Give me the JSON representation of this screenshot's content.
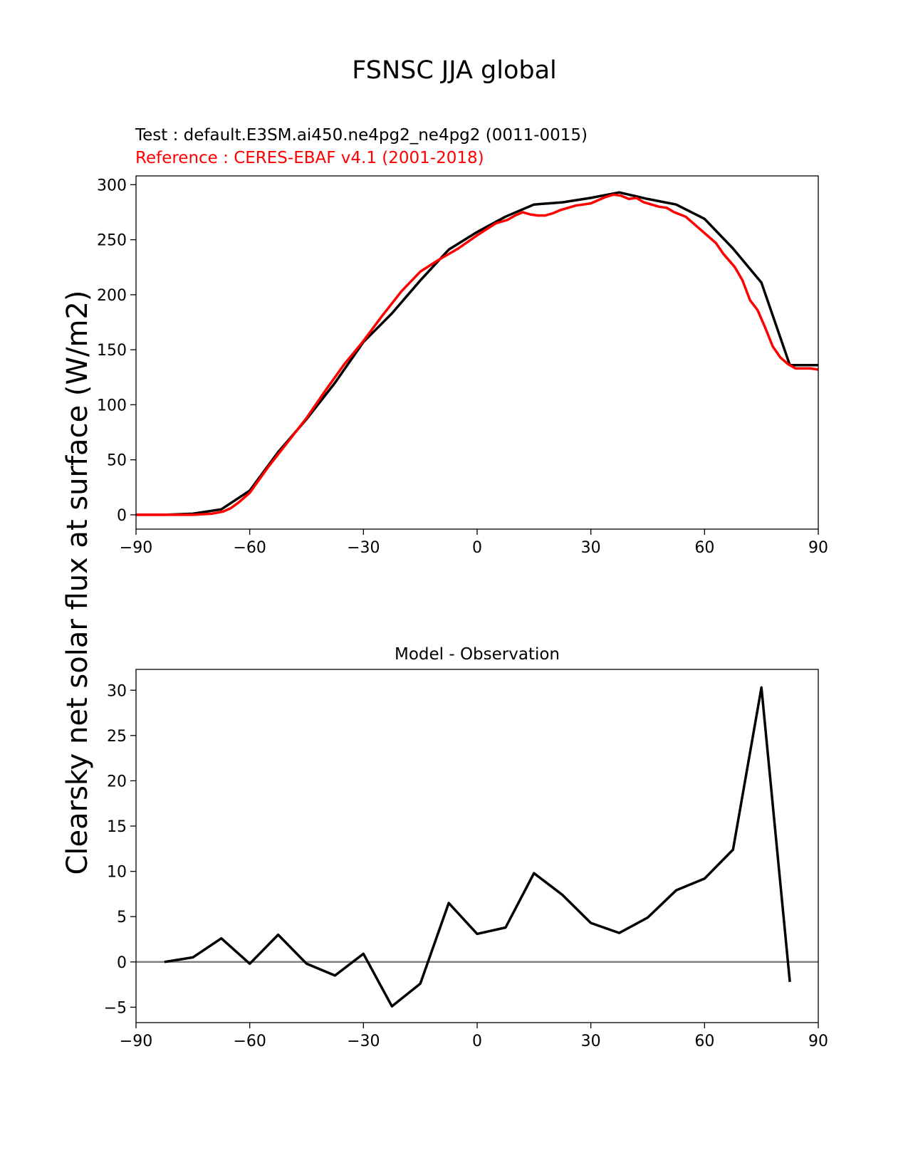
{
  "figure": {
    "title": "FSNSC JJA global",
    "ylabel": "Clearsky net solar flux at surface (W/m2)",
    "colors": {
      "test": "#000000",
      "reference": "#ff0000",
      "zero_line": "#808080"
    }
  },
  "chart_data": [
    {
      "type": "line",
      "test_label": "Test : default.E3SM.ai450.ne4pg2_ne4pg2 (0011-0015)",
      "reference_label": "Reference : CERES-EBAF v4.1 (2001-2018)",
      "xlim": [
        -90,
        90
      ],
      "ylim": [
        -13,
        308
      ],
      "xticks": [
        -90,
        -60,
        -30,
        0,
        30,
        60,
        90
      ],
      "xtick_labels": [
        "−90",
        "−60",
        "−30",
        "0",
        "30",
        "60",
        "90"
      ],
      "yticks": [
        0,
        50,
        100,
        150,
        200,
        250,
        300
      ],
      "ytick_labels": [
        "0",
        "50",
        "100",
        "150",
        "200",
        "250",
        "300"
      ],
      "series": [
        {
          "role": "test",
          "x": [
            -90,
            -82.5,
            -75,
            -67.5,
            -60,
            -52.5,
            -45,
            -37.5,
            -30,
            -22.5,
            -15,
            -7.5,
            0,
            7.5,
            15,
            22.5,
            30,
            37.5,
            45,
            52.5,
            60,
            67.5,
            75,
            82.5,
            90
          ],
          "y": [
            0,
            0,
            1,
            5,
            22,
            57,
            87,
            120,
            157,
            183,
            213,
            241,
            257,
            271,
            282,
            284,
            288,
            293,
            287,
            282,
            269,
            242,
            211,
            136,
            136
          ]
        },
        {
          "role": "reference",
          "x": [
            -90,
            -80,
            -75,
            -70,
            -67,
            -65,
            -63,
            -60,
            -55,
            -50,
            -45,
            -40,
            -35,
            -30,
            -25,
            -20,
            -15,
            -10,
            -5,
            0,
            5,
            8,
            10,
            12,
            14,
            16,
            18,
            20,
            22,
            24,
            26,
            28,
            30,
            32,
            34,
            36,
            38,
            40,
            42,
            44,
            46,
            48,
            50,
            52,
            55,
            58,
            60,
            63,
            65,
            68,
            70,
            72,
            74,
            76,
            78,
            80,
            82,
            84,
            86,
            88,
            90
          ],
          "y": [
            0,
            0,
            0,
            1,
            3,
            6,
            11,
            20,
            44,
            66,
            88,
            113,
            137,
            158,
            181,
            203,
            221,
            232,
            242,
            254,
            265,
            268,
            272,
            275,
            273,
            272,
            272,
            274,
            277,
            279,
            281,
            282,
            283,
            286,
            289,
            291,
            290,
            287,
            288,
            284,
            282,
            280,
            279,
            275,
            271,
            262,
            256,
            247,
            237,
            225,
            213,
            195,
            186,
            170,
            153,
            143,
            137,
            133,
            133,
            133,
            132
          ]
        }
      ]
    },
    {
      "type": "line",
      "title": "Model - Observation",
      "xlim": [
        -90,
        90
      ],
      "ylim": [
        -6.7,
        32.3
      ],
      "xticks": [
        -90,
        -60,
        -30,
        0,
        30,
        60,
        90
      ],
      "xtick_labels": [
        "−90",
        "−60",
        "−30",
        "0",
        "30",
        "60",
        "90"
      ],
      "yticks": [
        -5,
        0,
        5,
        10,
        15,
        20,
        25,
        30
      ],
      "ytick_labels": [
        "−5",
        "0",
        "5",
        "10",
        "15",
        "20",
        "25",
        "30"
      ],
      "zero_line": true,
      "series": [
        {
          "role": "difference",
          "x": [
            -82.5,
            -75,
            -67.5,
            -60,
            -52.5,
            -45,
            -37.5,
            -30,
            -22.5,
            -15,
            -7.5,
            0,
            7.5,
            15,
            22.5,
            30,
            37.5,
            45,
            52.5,
            60,
            67.5,
            75,
            82.5
          ],
          "y": [
            0,
            0.5,
            2.6,
            -0.2,
            3.0,
            -0.2,
            -1.5,
            0.9,
            -4.9,
            -2.4,
            6.5,
            3.1,
            3.8,
            9.8,
            7.4,
            4.3,
            3.2,
            4.9,
            7.9,
            9.2,
            12.4,
            30.3,
            -2.2
          ]
        }
      ]
    }
  ]
}
